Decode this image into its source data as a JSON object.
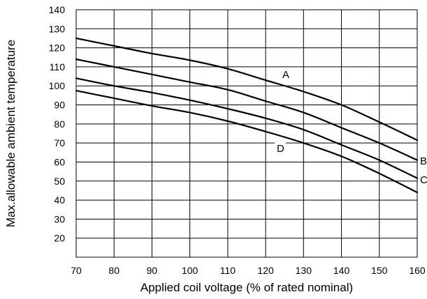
{
  "chart_data": {
    "type": "line",
    "title": "",
    "xlabel": "Applied coil voltage (% of rated nominal)",
    "ylabel": "Max.allowable ambient temperature",
    "xlim": [
      70,
      160
    ],
    "ylim": [
      10,
      140
    ],
    "xticks": [
      70,
      80,
      90,
      100,
      110,
      120,
      130,
      140,
      150,
      160
    ],
    "yticks": [
      20,
      30,
      40,
      50,
      60,
      70,
      80,
      90,
      100,
      110,
      120,
      130,
      140
    ],
    "grid": true,
    "legend": "none",
    "series": [
      {
        "name": "A",
        "x": [
          70,
          80,
          90,
          100,
          110,
          120,
          130,
          140,
          150,
          160
        ],
        "y": [
          125,
          121,
          117,
          113.5,
          109,
          103,
          97,
          90,
          81,
          71.5
        ]
      },
      {
        "name": "B",
        "x": [
          70,
          80,
          90,
          100,
          110,
          120,
          130,
          140,
          150,
          160
        ],
        "y": [
          114,
          110,
          106,
          102,
          98,
          92,
          86,
          78,
          70,
          61
        ]
      },
      {
        "name": "C",
        "x": [
          70,
          80,
          90,
          100,
          110,
          120,
          130,
          140,
          150,
          160
        ],
        "y": [
          104,
          100,
          96.5,
          92.5,
          88,
          83,
          77,
          69,
          61,
          51.5
        ]
      },
      {
        "name": "D",
        "x": [
          70,
          80,
          90,
          100,
          110,
          120,
          130,
          140,
          150,
          160
        ],
        "y": [
          97.5,
          93.5,
          89.5,
          86,
          81.5,
          76,
          70,
          63,
          54,
          44
        ]
      }
    ]
  }
}
